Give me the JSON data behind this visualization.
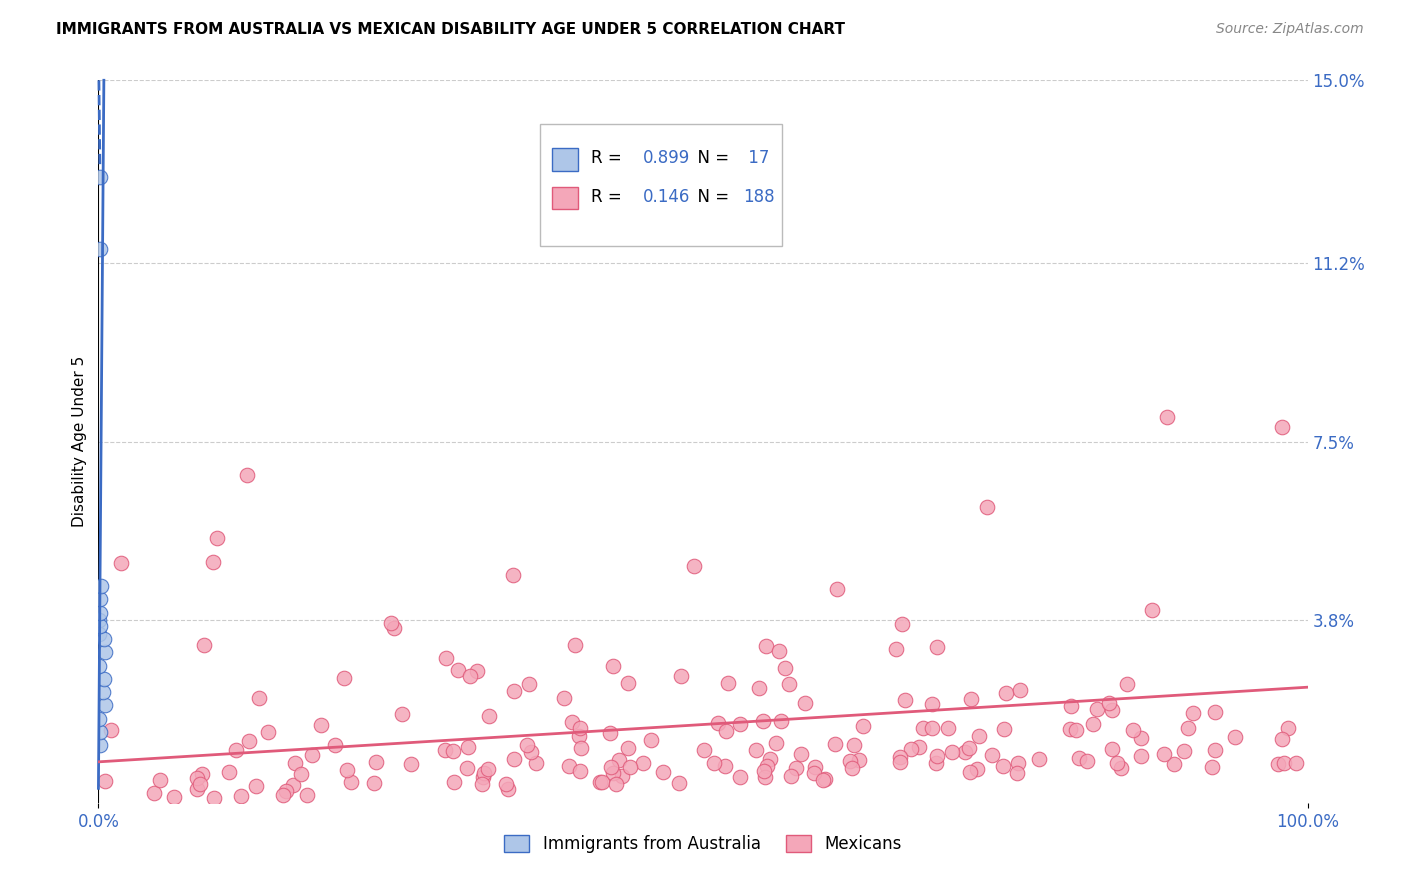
{
  "title": "IMMIGRANTS FROM AUSTRALIA VS MEXICAN DISABILITY AGE UNDER 5 CORRELATION CHART",
  "source": "Source: ZipAtlas.com",
  "ylabel": "Disability Age Under 5",
  "xlim": [
    0,
    100
  ],
  "ylim": [
    0,
    15
  ],
  "australia_R": 0.899,
  "australia_N": 17,
  "mexican_R": 0.146,
  "mexican_N": 188,
  "australia_color": "#aec6e8",
  "mexico_color": "#f4a7b9",
  "trend_blue": "#3b6bc4",
  "trend_pink": "#e05a7a",
  "grid_color": "#cccccc",
  "ytick_vals": [
    3.8,
    7.5,
    11.2,
    15.0
  ],
  "ytick_labels": [
    "3.8%",
    "7.5%",
    "11.2%",
    "15.0%"
  ]
}
